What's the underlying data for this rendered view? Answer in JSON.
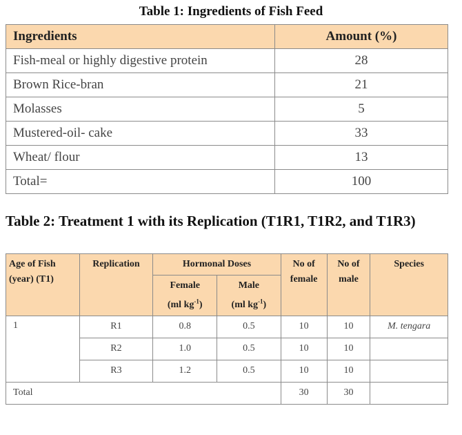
{
  "table1": {
    "title": "Table 1: Ingredients of Fish Feed",
    "headers": {
      "ingredient": "Ingredients",
      "amount": "Amount (%)"
    },
    "rows": [
      {
        "ingredient": "Fish-meal or highly digestive protein",
        "amount": "28"
      },
      {
        "ingredient": "Brown Rice-bran",
        "amount": "21"
      },
      {
        "ingredient": "Molasses",
        "amount": "5"
      },
      {
        "ingredient": "Mustered-oil- cake",
        "amount": "33"
      },
      {
        "ingredient": "Wheat/ flour",
        "amount": "13"
      },
      {
        "ingredient": "Total=",
        "amount": "100"
      }
    ]
  },
  "table2": {
    "title": "Table 2: Treatment 1 with its Replication (T1R1, T1R2, and T1R3)",
    "headers": {
      "age": "Age of Fish (year) (T1)",
      "replication": "Replication",
      "hormonal": "Hormonal Doses",
      "female_dose": "Female",
      "male_dose": "Male",
      "dose_unit_prefix": "(ml kg",
      "dose_unit_sup": "-1",
      "dose_unit_suffix": ")",
      "no_female": "No of female",
      "no_male": "No of male",
      "species": "Species"
    },
    "age_value": "1",
    "rows": [
      {
        "replication": "R1",
        "female": "0.8",
        "male": "0.5",
        "no_female": "10",
        "no_male": "10",
        "species": "M. tengara"
      },
      {
        "replication": "R2",
        "female": "1.0",
        "male": "0.5",
        "no_female": "10",
        "no_male": "10",
        "species": ""
      },
      {
        "replication": "R3",
        "female": "1.2",
        "male": "0.5",
        "no_female": "10",
        "no_male": "10",
        "species": ""
      }
    ],
    "total": {
      "label": "Total",
      "no_female": "30",
      "no_male": "30"
    }
  }
}
